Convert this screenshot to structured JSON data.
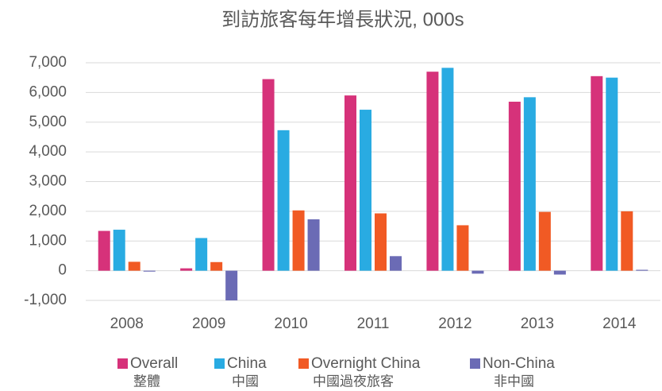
{
  "chart_data": {
    "type": "bar",
    "title": "到訪旅客每年增長狀況, 000s",
    "categories": [
      "2008",
      "2009",
      "2010",
      "2011",
      "2012",
      "2013",
      "2014"
    ],
    "series": [
      {
        "name": "Overall",
        "label_zh": "整體",
        "color": "#d6327a",
        "values": [
          1340,
          80,
          6450,
          5900,
          6700,
          5690,
          6550
        ]
      },
      {
        "name": "China",
        "label_zh": "中國",
        "color": "#29abe2",
        "values": [
          1380,
          1100,
          4730,
          5420,
          6830,
          5840,
          6500
        ]
      },
      {
        "name": "Overnight China",
        "label_zh": "中國過夜旅客",
        "color": "#f15a24",
        "values": [
          300,
          290,
          2030,
          1930,
          1530,
          1980,
          2000
        ]
      },
      {
        "name": "Non-China",
        "label_zh": "非中國",
        "color": "#6b6bb5",
        "values": [
          -30,
          -1000,
          1730,
          490,
          -100,
          -130,
          30
        ]
      }
    ],
    "ylim": [
      -1000,
      7000
    ],
    "yticks": [
      {
        "value": -1000,
        "label": "-1,000"
      },
      0,
      {
        "value": 1000,
        "label": "1,000"
      },
      {
        "value": 2000,
        "label": "2,000"
      },
      {
        "value": 3000,
        "label": "3,000"
      },
      {
        "value": 4000,
        "label": "4,000"
      },
      {
        "value": 5000,
        "label": "5,000"
      },
      {
        "value": 6000,
        "label": "6,000"
      },
      {
        "value": 7000,
        "label": "7,000"
      }
    ],
    "grid": true
  }
}
